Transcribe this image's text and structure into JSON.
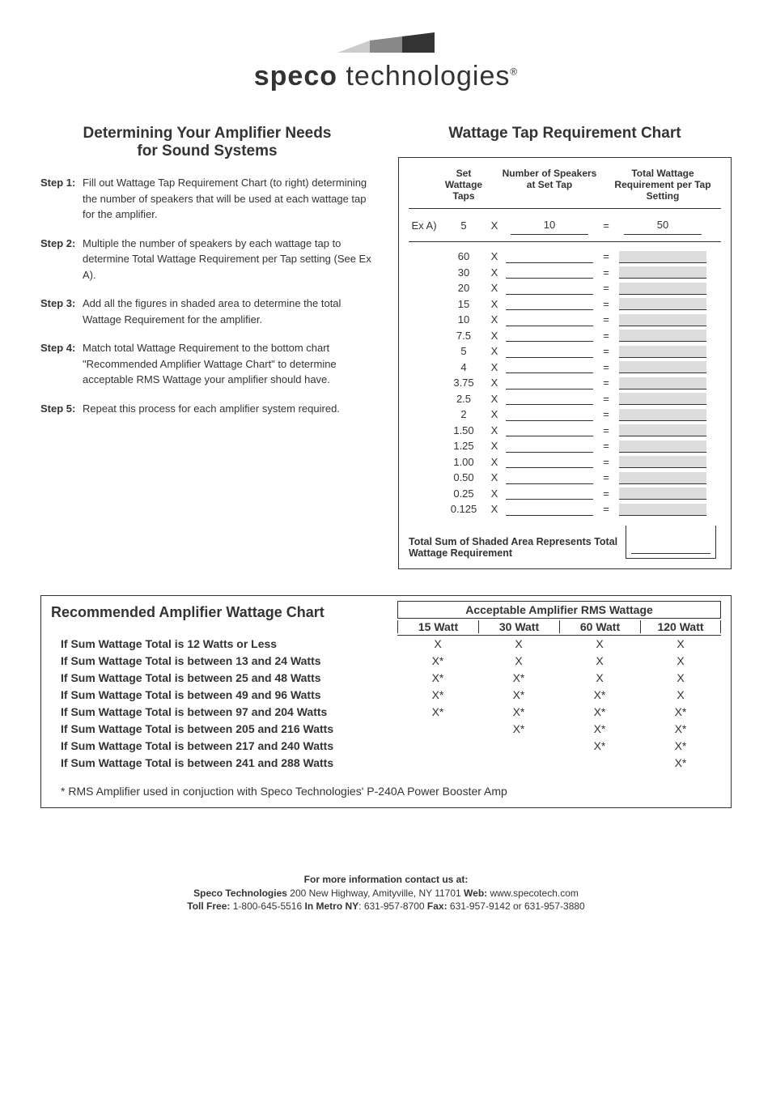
{
  "logo": {
    "brand_bold": "speco",
    "brand_light": " technologies",
    "trademark": "®",
    "wedge_color_dark": "#333333",
    "wedge_color_mid": "#888888",
    "wedge_color_light": "#cccccc"
  },
  "left": {
    "title_line1": "Determining Your Amplifier Needs",
    "title_line2": "for Sound Systems",
    "steps": [
      {
        "label": "Step 1:",
        "text": "Fill out Wattage Tap Requirement Chart (to right) determining the number of speakers that will be used at each wattage tap for the amplifier."
      },
      {
        "label": "Step 2:",
        "text": "Multiple the number of speakers by each wattage tap to determine Total Wattage Requirement per Tap setting (See Ex A)."
      },
      {
        "label": "Step 3:",
        "text": "Add all the figures in shaded area to determine the total Wattage Requirement for the amplifier."
      },
      {
        "label": "Step 4:",
        "text": "Match total Wattage Requirement to the bottom chart \"Recommended Amplifier Wattage Chart\" to determine acceptable RMS Wattage your amplifier should have."
      },
      {
        "label": "Step 5:",
        "text": "Repeat this process for each amplifier system required."
      }
    ]
  },
  "right": {
    "title": "Wattage Tap Requirement Chart",
    "header": {
      "col1": "Set Wattage Taps",
      "col2": "Number of Speakers at Set Tap",
      "col3": "Total Wattage Requirement per Tap Setting"
    },
    "example": {
      "label": "Ex A)",
      "tap": "5",
      "mult": "X",
      "speakers": "10",
      "eq": "=",
      "total": "50"
    },
    "taps": [
      "60",
      "30",
      "20",
      "15",
      "10",
      "7.5",
      "5",
      "4",
      "3.75",
      "2.5",
      "2",
      "1.50",
      "1.25",
      "1.00",
      "0.50",
      "0.25",
      "0.125"
    ],
    "mult_symbol": "X",
    "eq_symbol": "=",
    "total_label": "Total Sum of Shaded Area Represents Total Wattage Requirement",
    "shaded_color": "#dddddd"
  },
  "rec": {
    "title": "Recommended Amplifier Wattage Chart",
    "acc_title": "Acceptable Amplifier RMS Wattage",
    "watt_columns": [
      "15 Watt",
      "30 Watt",
      "60 Watt",
      "120 Watt"
    ],
    "rows": [
      {
        "condition": "If Sum Wattage Total is 12 Watts or Less",
        "marks": [
          "X",
          "X",
          "X",
          "X"
        ]
      },
      {
        "condition": "If Sum Wattage Total is between 13 and 24 Watts",
        "marks": [
          "X*",
          "X",
          "X",
          "X"
        ]
      },
      {
        "condition": "If Sum Wattage Total is between 25 and 48 Watts",
        "marks": [
          "X*",
          "X*",
          "X",
          "X"
        ]
      },
      {
        "condition": "If Sum Wattage Total is between 49 and 96 Watts",
        "marks": [
          "X*",
          "X*",
          "X*",
          "X"
        ]
      },
      {
        "condition": "If Sum Wattage Total is between 97 and 204 Watts",
        "marks": [
          "X*",
          "X*",
          "X*",
          "X*"
        ]
      },
      {
        "condition": "If Sum Wattage Total is between 205 and 216 Watts",
        "marks": [
          "",
          "X*",
          "X*",
          "X*"
        ]
      },
      {
        "condition": "If Sum Wattage Total is between 217 and 240 Watts",
        "marks": [
          "",
          "",
          "X*",
          "X*"
        ]
      },
      {
        "condition": "If Sum Wattage Total is between 241 and 288 Watts",
        "marks": [
          "",
          "",
          "",
          "X*"
        ]
      }
    ],
    "footnote": "* RMS Amplifier used in conjuction with Speco Technologies' P-240A Power Booster Amp"
  },
  "footer": {
    "line1": "For more information contact us at:",
    "company": "Speco Technologies",
    "address": " 200 New Highway, Amityville, NY 11701 ",
    "web_label": "Web:",
    "web": " www.specotech.com",
    "tollfree_label": "Toll Free:",
    "tollfree": " 1-800-645-5516 ",
    "metro_label": "In Metro NY",
    "metro": ": 631-957-8700 ",
    "fax_label": "Fax:",
    "fax": " 631-957-9142 or 631-957-3880"
  }
}
